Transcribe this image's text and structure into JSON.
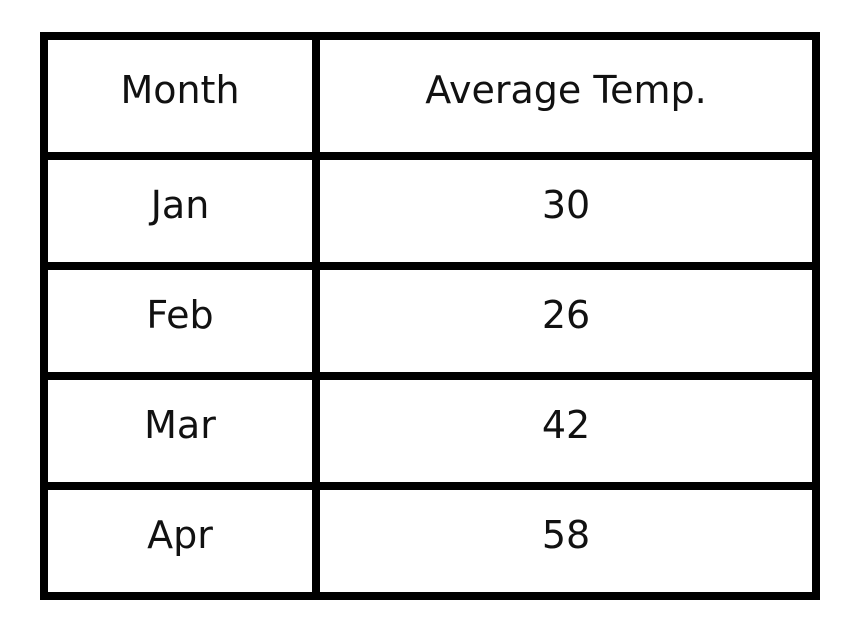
{
  "chart_data": {
    "type": "table",
    "columns": [
      "Month",
      "Average Temp."
    ],
    "rows": [
      [
        "Jan",
        "30"
      ],
      [
        "Feb",
        "26"
      ],
      [
        "Mar",
        "42"
      ],
      [
        "Apr",
        "58"
      ]
    ]
  }
}
